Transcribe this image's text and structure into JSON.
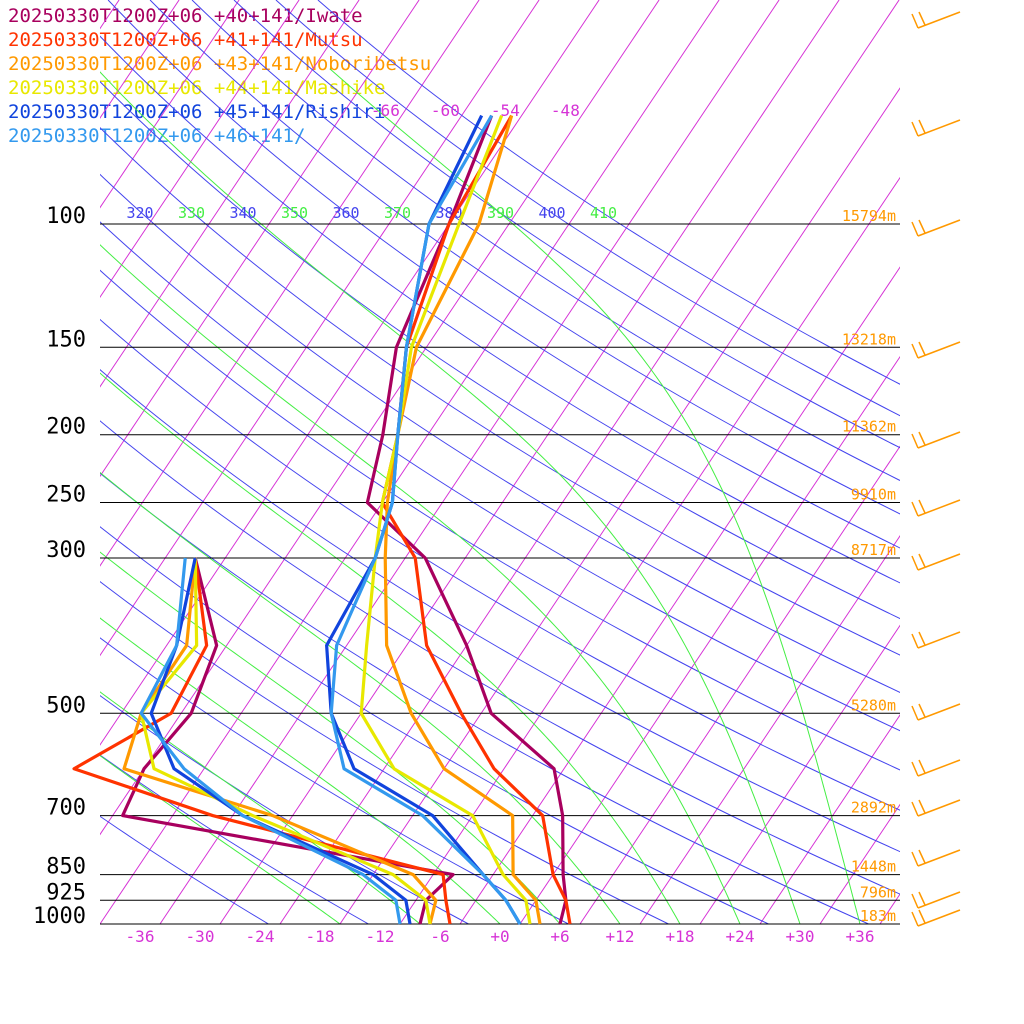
{
  "legend": [
    {
      "text": "20250330T1200Z+06 +40+141/Iwate",
      "color": "#a8005e"
    },
    {
      "text": "20250330T1200Z+06 +41+141/Mutsu",
      "color": "#ff3300"
    },
    {
      "text": "20250330T1200Z+06 +43+141/Noboribetsu",
      "color": "#ff9900"
    },
    {
      "text": "20250330T1200Z+06 +44+141/Mashike",
      "color": "#e8e800"
    },
    {
      "text": "20250330T1200Z+06 +45+141/Rishiri",
      "color": "#1144dd"
    },
    {
      "text": "20250330T1200Z+06 +46+141/",
      "color": "#3399ee"
    }
  ],
  "chart_data": {
    "type": "line",
    "chart_kind": "skew-T log-p sounding",
    "y_scale": "log pressure",
    "pressure_levels_hPa": [
      100,
      150,
      200,
      250,
      300,
      500,
      700,
      850,
      925,
      1000
    ],
    "pressure_labels": [
      "100",
      "150",
      "200",
      "250",
      "300",
      "500",
      "700",
      "850",
      "925",
      "1000"
    ],
    "height_labels": [
      {
        "p": 100,
        "text": "15794m"
      },
      {
        "p": 150,
        "text": "13218m"
      },
      {
        "p": 200,
        "text": "11362m"
      },
      {
        "p": 250,
        "text": "9910m"
      },
      {
        "p": 300,
        "text": "8717m"
      },
      {
        "p": 500,
        "text": "5280m"
      },
      {
        "p": 700,
        "text": "2892m"
      },
      {
        "p": 850,
        "text": "1448m"
      },
      {
        "p": 925,
        "text": "796m"
      },
      {
        "p": 1000,
        "text": "183m"
      }
    ],
    "temperature_ticks": [
      {
        "v": -36,
        "text": "-36"
      },
      {
        "v": -30,
        "text": "-30"
      },
      {
        "v": -24,
        "text": "-24"
      },
      {
        "v": -18,
        "text": "-18"
      },
      {
        "v": -12,
        "text": "-12"
      },
      {
        "v": -6,
        "text": "-6"
      },
      {
        "v": 0,
        "text": "+0"
      },
      {
        "v": 6,
        "text": "+6"
      },
      {
        "v": 12,
        "text": "+12"
      },
      {
        "v": 18,
        "text": "+18"
      },
      {
        "v": 24,
        "text": "+24"
      },
      {
        "v": 30,
        "text": "+30"
      },
      {
        "v": 36,
        "text": "+36"
      }
    ],
    "x_range_degC": [
      -40,
      40
    ],
    "upper_temperature_labels": [
      {
        "v": -66,
        "text": "-66"
      },
      {
        "v": -60,
        "text": "-60"
      },
      {
        "v": -54,
        "text": "-54"
      },
      {
        "v": -48,
        "text": "-48"
      }
    ],
    "theta_labels": [
      "320",
      "330",
      "340",
      "350",
      "360",
      "370",
      "380",
      "390",
      "400",
      "410"
    ],
    "series": [
      {
        "name": "20250330T1200Z+06 +40+141/Iwate",
        "color": "#a8005e",
        "temperature": [
          [
            70,
            -55
          ],
          [
            100,
            -52
          ],
          [
            150,
            -49
          ],
          [
            200,
            -44.5
          ],
          [
            250,
            -41.5
          ],
          [
            300,
            -32
          ],
          [
            400,
            -22
          ],
          [
            500,
            -15
          ],
          [
            600,
            -5
          ],
          [
            700,
            -1
          ],
          [
            850,
            3
          ],
          [
            925,
            5
          ],
          [
            1000,
            6
          ]
        ],
        "dewpoint": [
          [
            300,
            -55
          ],
          [
            400,
            -47
          ],
          [
            500,
            -45
          ],
          [
            600,
            -46
          ],
          [
            700,
            -45
          ],
          [
            850,
            -8
          ],
          [
            925,
            -9
          ],
          [
            1000,
            -8
          ]
        ]
      },
      {
        "name": "20250330T1200Z+06 +41+141/Mutsu",
        "color": "#ff3300",
        "temperature": [
          [
            70,
            -53
          ],
          [
            100,
            -52
          ],
          [
            150,
            -48
          ],
          [
            200,
            -43
          ],
          [
            250,
            -40
          ],
          [
            300,
            -33
          ],
          [
            400,
            -26
          ],
          [
            500,
            -18
          ],
          [
            600,
            -11
          ],
          [
            700,
            -3
          ],
          [
            850,
            2
          ],
          [
            925,
            5
          ],
          [
            1000,
            7
          ]
        ],
        "dewpoint": [
          [
            300,
            -55
          ],
          [
            400,
            -48
          ],
          [
            500,
            -47
          ],
          [
            600,
            -53
          ],
          [
            700,
            -36
          ],
          [
            850,
            -9
          ],
          [
            925,
            -7
          ],
          [
            1000,
            -5
          ]
        ]
      },
      {
        "name": "20250330T1200Z+06 +43+141/Noboribetsu",
        "color": "#ff9900",
        "temperature": [
          [
            70,
            -53
          ],
          [
            100,
            -49
          ],
          [
            150,
            -47
          ],
          [
            200,
            -43
          ],
          [
            250,
            -39.5
          ],
          [
            300,
            -36
          ],
          [
            400,
            -30
          ],
          [
            500,
            -23
          ],
          [
            600,
            -16
          ],
          [
            700,
            -6
          ],
          [
            850,
            -2
          ],
          [
            925,
            2
          ],
          [
            1000,
            4
          ]
        ],
        "dewpoint": [
          [
            300,
            -55
          ],
          [
            400,
            -50
          ],
          [
            500,
            -50
          ],
          [
            600,
            -48
          ],
          [
            700,
            -30
          ],
          [
            850,
            -12
          ],
          [
            925,
            -8
          ],
          [
            1000,
            -7
          ]
        ]
      },
      {
        "name": "20250330T1200Z+06 +44+141/Mashike",
        "color": "#e8e800",
        "temperature": [
          [
            70,
            -54
          ],
          [
            100,
            -51
          ],
          [
            150,
            -47.5
          ],
          [
            200,
            -43
          ],
          [
            250,
            -40
          ],
          [
            300,
            -37
          ],
          [
            400,
            -32
          ],
          [
            500,
            -28
          ],
          [
            600,
            -21
          ],
          [
            700,
            -10
          ],
          [
            850,
            -3
          ],
          [
            925,
            1
          ],
          [
            1000,
            3
          ]
        ],
        "dewpoint": [
          [
            300,
            -55
          ],
          [
            400,
            -49
          ],
          [
            500,
            -50
          ],
          [
            600,
            -45
          ],
          [
            700,
            -32
          ],
          [
            850,
            -14
          ],
          [
            925,
            -9
          ],
          [
            1000,
            -7
          ]
        ]
      },
      {
        "name": "20250330T1200Z+06 +45+141/Rishiri",
        "color": "#1144dd",
        "temperature": [
          [
            70,
            -56
          ],
          [
            100,
            -54
          ],
          [
            150,
            -48
          ],
          [
            200,
            -43
          ],
          [
            250,
            -39
          ],
          [
            300,
            -37
          ],
          [
            400,
            -36
          ],
          [
            500,
            -31
          ],
          [
            600,
            -25
          ],
          [
            700,
            -14
          ],
          [
            850,
            -5
          ],
          [
            925,
            -1
          ],
          [
            1000,
            2
          ]
        ],
        "dewpoint": [
          [
            300,
            -55
          ],
          [
            400,
            -51
          ],
          [
            500,
            -49
          ],
          [
            600,
            -43
          ],
          [
            700,
            -33
          ],
          [
            850,
            -16
          ],
          [
            925,
            -11
          ],
          [
            1000,
            -9
          ]
        ]
      },
      {
        "name": "20250330T1200Z+06 +46+141/",
        "color": "#3399ee",
        "temperature": [
          [
            70,
            -55
          ],
          [
            100,
            -54
          ],
          [
            150,
            -48
          ],
          [
            200,
            -43
          ],
          [
            250,
            -39
          ],
          [
            300,
            -37
          ],
          [
            400,
            -35
          ],
          [
            500,
            -31
          ],
          [
            600,
            -26
          ],
          [
            700,
            -15
          ],
          [
            850,
            -5
          ],
          [
            925,
            -1
          ],
          [
            1000,
            2
          ]
        ],
        "dewpoint": [
          [
            300,
            -56
          ],
          [
            400,
            -51
          ],
          [
            500,
            -50
          ],
          [
            600,
            -42
          ],
          [
            700,
            -33
          ],
          [
            850,
            -17
          ],
          [
            925,
            -12
          ],
          [
            1000,
            -10
          ]
        ]
      }
    ],
    "wind_barbs_color": "#ff9900",
    "grid": true,
    "isotherm_color": "#d633d6",
    "dry_adiabat_color": "#4444ee",
    "moist_adiabat_color": "#44ee44"
  }
}
